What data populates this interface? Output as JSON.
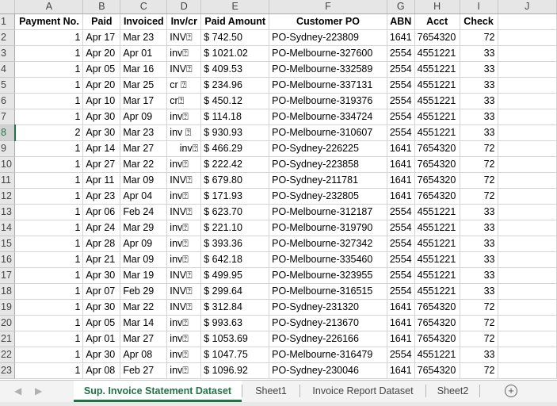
{
  "sheet": {
    "columns": [
      "A",
      "B",
      "C",
      "D",
      "E",
      "F",
      "G",
      "H",
      "I",
      "J"
    ],
    "header_row_number": "1",
    "headers": [
      "Payment No.",
      "Paid",
      "Invoiced",
      "Inv/cr",
      "Paid Amount",
      "Customer PO",
      "ABN",
      "Acct",
      "Check",
      ""
    ],
    "rows": [
      {
        "n": "2",
        "a": "1",
        "b": "Apr 17",
        "c": "Mar 23",
        "d": "INV⍰",
        "e": "$ 742.50",
        "f": "PO-Sydney-223809",
        "g": "1641",
        "h": "7654320",
        "i": "72"
      },
      {
        "n": "3",
        "a": "1",
        "b": "Apr 20",
        "c": "Apr 01",
        "d": "inv⍰",
        "e": "$ 1021.02",
        "f": "PO-Melbourne-327600",
        "g": "2554",
        "h": "4551221",
        "i": "33"
      },
      {
        "n": "4",
        "a": "1",
        "b": "Apr 05",
        "c": "Mar 16",
        "d": "INV⍰",
        "e": "$ 409.53",
        "f": "PO-Melbourne-332589",
        "g": "2554",
        "h": "4551221",
        "i": "33"
      },
      {
        "n": "5",
        "a": "1",
        "b": "Apr 20",
        "c": "Mar 25",
        "d": "cr ⍰",
        "e": "$ 234.96",
        "f": "PO-Melbourne-337131",
        "g": "2554",
        "h": "4551221",
        "i": "33"
      },
      {
        "n": "6",
        "a": "1",
        "b": "Apr 10",
        "c": "Mar 17",
        "d": "cr⍰",
        "e": "$ 450.12",
        "f": "PO-Melbourne-319376",
        "g": "2554",
        "h": "4551221",
        "i": "33"
      },
      {
        "n": "7",
        "a": "1",
        "b": "Apr 30",
        "c": "Apr 09",
        "d": "inv⍰",
        "e": "$ 114.18",
        "f": "PO-Melbourne-334724",
        "g": "2554",
        "h": "4551221",
        "i": "33"
      },
      {
        "n": "8",
        "a": "2",
        "b": "Apr 30",
        "c": "Mar 23",
        "d": "inv ⍰",
        "e": "$ 930.93",
        "f": "PO-Melbourne-310607",
        "g": "2554",
        "h": "4551221",
        "i": "33"
      },
      {
        "n": "9",
        "a": "1",
        "b": "Apr 14",
        "c": "Mar 27",
        "d": "inv⍰",
        "e": "$ 466.29",
        "f": "PO-Sydney-226225",
        "g": "1641",
        "h": "7654320",
        "i": "72"
      },
      {
        "n": "10",
        "a": "1",
        "b": "Apr 27",
        "c": "Mar 22",
        "d": "inv⍰",
        "e": "$ 222.42",
        "f": "PO-Sydney-223858",
        "g": "1641",
        "h": "7654320",
        "i": "72"
      },
      {
        "n": "11",
        "a": "1",
        "b": "Apr 11",
        "c": "Mar 09",
        "d": "INV⍰",
        "e": "$ 679.80",
        "f": "PO-Sydney-211781",
        "g": "1641",
        "h": "7654320",
        "i": "72"
      },
      {
        "n": "12",
        "a": "1",
        "b": "Apr 23",
        "c": "Apr 04",
        "d": "inv⍰",
        "e": "$ 171.93",
        "f": "PO-Sydney-232805",
        "g": "1641",
        "h": "7654320",
        "i": "72"
      },
      {
        "n": "13",
        "a": "1",
        "b": "Apr 06",
        "c": "Feb 24",
        "d": "INV⍰",
        "e": "$ 623.70",
        "f": "PO-Melbourne-312187",
        "g": "2554",
        "h": "4551221",
        "i": "33"
      },
      {
        "n": "14",
        "a": "1",
        "b": "Apr 24",
        "c": "Mar 29",
        "d": "inv⍰",
        "e": "$ 221.10",
        "f": "PO-Melbourne-319790",
        "g": "2554",
        "h": "4551221",
        "i": "33"
      },
      {
        "n": "15",
        "a": "1",
        "b": "Apr 28",
        "c": "Apr 09",
        "d": "inv⍰",
        "e": "$ 393.36",
        "f": "PO-Melbourne-327342",
        "g": "2554",
        "h": "4551221",
        "i": "33"
      },
      {
        "n": "16",
        "a": "1",
        "b": "Apr 21",
        "c": "Mar 09",
        "d": "inv⍰",
        "e": "$ 642.18",
        "f": "PO-Melbourne-335460",
        "g": "2554",
        "h": "4551221",
        "i": "33"
      },
      {
        "n": "17",
        "a": "1",
        "b": "Apr 30",
        "c": "Mar 19",
        "d": "INV⍰",
        "e": "$ 499.95",
        "f": "PO-Melbourne-323955",
        "g": "2554",
        "h": "4551221",
        "i": "33"
      },
      {
        "n": "18",
        "a": "1",
        "b": "Apr 07",
        "c": "Feb 29",
        "d": "INV⍰",
        "e": "$ 299.64",
        "f": "PO-Melbourne-316515",
        "g": "2554",
        "h": "4551221",
        "i": "33"
      },
      {
        "n": "19",
        "a": "1",
        "b": "Apr 30",
        "c": "Mar 22",
        "d": "INV⍰",
        "e": "$ 312.84",
        "f": "PO-Sydney-231320",
        "g": "1641",
        "h": "7654320",
        "i": "72"
      },
      {
        "n": "20",
        "a": "1",
        "b": "Apr 05",
        "c": "Mar 14",
        "d": "inv⍰",
        "e": "$ 993.63",
        "f": "PO-Sydney-213670",
        "g": "1641",
        "h": "7654320",
        "i": "72"
      },
      {
        "n": "21",
        "a": "1",
        "b": "Apr 01",
        "c": "Mar 27",
        "d": "inv⍰",
        "e": "$ 1053.69",
        "f": "PO-Sydney-226166",
        "g": "1641",
        "h": "7654320",
        "i": "72"
      },
      {
        "n": "22",
        "a": "1",
        "b": "Apr 30",
        "c": "Apr 08",
        "d": "inv⍰",
        "e": "$ 1047.75",
        "f": "PO-Melbourne-316479",
        "g": "2554",
        "h": "4551221",
        "i": "33"
      },
      {
        "n": "23",
        "a": "1",
        "b": "Apr 08",
        "c": "Feb 27",
        "d": "inv⍰",
        "e": "$ 1096.92",
        "f": "PO-Sydney-230046",
        "g": "1641",
        "h": "7654320",
        "i": "72"
      }
    ],
    "active_row": "8",
    "right_aligned_d_rows": [
      "9"
    ]
  },
  "tabs": {
    "prev_icon": "◀",
    "next_icon": "▶",
    "items": [
      {
        "label": "Sup. Invoice Statement Dataset",
        "active": true
      },
      {
        "label": "Sheet1",
        "active": false
      },
      {
        "label": "Invoice Report Dataset",
        "active": false
      },
      {
        "label": "Sheet2",
        "active": false
      }
    ],
    "add_icon": "+"
  },
  "colors": {
    "accent": "#217346",
    "header_bg": "#e6e6e6",
    "gridline": "#d4d4d4"
  }
}
